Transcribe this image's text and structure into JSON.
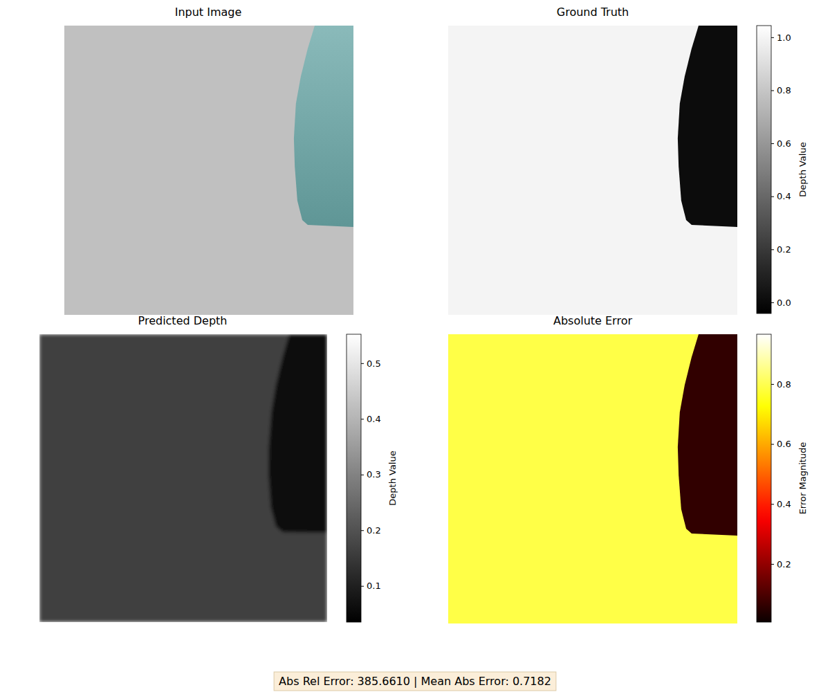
{
  "chart_data": [
    {
      "type": "image",
      "title": "Input Image",
      "tick_labels": false,
      "regions": [
        {
          "color": "#c0c0c0",
          "polygon": [
            [
              0,
              0
            ],
            [
              1,
              0
            ],
            [
              1,
              1
            ],
            [
              0,
              1
            ]
          ]
        },
        {
          "colors": [
            "#8ababa",
            "#5f9696"
          ],
          "polygon": [
            [
              0.866,
              0
            ],
            [
              1,
              0
            ],
            [
              1,
              0.696
            ],
            [
              0.842,
              0.689
            ],
            [
              0.823,
              0.672
            ],
            [
              0.806,
              0.605
            ],
            [
              0.797,
              0.486
            ],
            [
              0.794,
              0.39
            ],
            [
              0.801,
              0.27
            ],
            [
              0.818,
              0.175
            ],
            [
              0.842,
              0.079
            ]
          ]
        }
      ]
    },
    {
      "type": "heatmap",
      "title": "Ground Truth",
      "color": "gray",
      "tick_labels": false,
      "colorbar": {
        "label": "Depth Value",
        "range": [
          -0.042,
          1.044
        ],
        "ticks": [
          {
            "value": 0,
            "label": "0.0"
          },
          {
            "value": 0.2,
            "label": "0.2"
          },
          {
            "value": 0.4,
            "label": "0.4"
          },
          {
            "value": 0.6,
            "label": "0.6"
          },
          {
            "value": 0.8,
            "label": "0.8"
          },
          {
            "value": 1,
            "label": "1.0"
          }
        ]
      },
      "regions": [
        {
          "value": 0.997,
          "polygon": [
            [
              0,
              0
            ],
            [
              1,
              0
            ],
            [
              1,
              1
            ],
            [
              0,
              1
            ]
          ]
        },
        {
          "value": 0.009,
          "polygon": [
            [
              0.866,
              0
            ],
            [
              1,
              0
            ],
            [
              1,
              0.696
            ],
            [
              0.842,
              0.689
            ],
            [
              0.823,
              0.672
            ],
            [
              0.806,
              0.605
            ],
            [
              0.797,
              0.486
            ],
            [
              0.794,
              0.39
            ],
            [
              0.801,
              0.27
            ],
            [
              0.818,
              0.175
            ],
            [
              0.842,
              0.079
            ]
          ]
        }
      ]
    },
    {
      "type": "heatmap",
      "title": "Predicted Depth",
      "color": "gray",
      "tick_labels": false,
      "colorbar": {
        "label": "Depth Value",
        "range": [
          0.035,
          0.552
        ],
        "ticks": [
          0.1,
          0.2,
          0.3,
          0.4,
          0.5
        ]
      },
      "regions": [
        {
          "value": 0.165,
          "polygon": [
            [
              0,
              0
            ],
            [
              1,
              0
            ],
            [
              1,
              1
            ],
            [
              0,
              1
            ]
          ]
        },
        {
          "value": 0.067,
          "polygon": [
            [
              0.868,
              0
            ],
            [
              1,
              0
            ],
            [
              1,
              0.69
            ],
            [
              0.846,
              0.688
            ],
            [
              0.822,
              0.668
            ],
            [
              0.804,
              0.6
            ],
            [
              0.796,
              0.486
            ],
            [
              0.797,
              0.39
            ],
            [
              0.806,
              0.27
            ],
            [
              0.822,
              0.175
            ],
            [
              0.845,
              0.079
            ]
          ]
        }
      ]
    },
    {
      "type": "heatmap",
      "title": "Absolute Error",
      "color": "hot",
      "tick_labels": false,
      "colorbar": {
        "label": "Error Magnitude",
        "range": [
          0.006,
          0.966
        ],
        "ticks": [
          0.2,
          0.4,
          0.6,
          0.8
        ]
      },
      "regions": [
        {
          "value": 0.79,
          "polygon": [
            [
              0,
              0
            ],
            [
              1,
              0
            ],
            [
              1,
              1
            ],
            [
              0,
              1
            ]
          ]
        },
        {
          "value": 0.06,
          "polygon": [
            [
              0.866,
              0
            ],
            [
              1,
              0
            ],
            [
              1,
              0.696
            ],
            [
              0.842,
              0.689
            ],
            [
              0.823,
              0.672
            ],
            [
              0.806,
              0.605
            ],
            [
              0.797,
              0.486
            ],
            [
              0.794,
              0.39
            ],
            [
              0.801,
              0.27
            ],
            [
              0.818,
              0.175
            ],
            [
              0.842,
              0.079
            ]
          ]
        }
      ]
    }
  ],
  "annotation": "Abs Rel Error: 385.6610 | Mean Abs Error: 0.7182"
}
